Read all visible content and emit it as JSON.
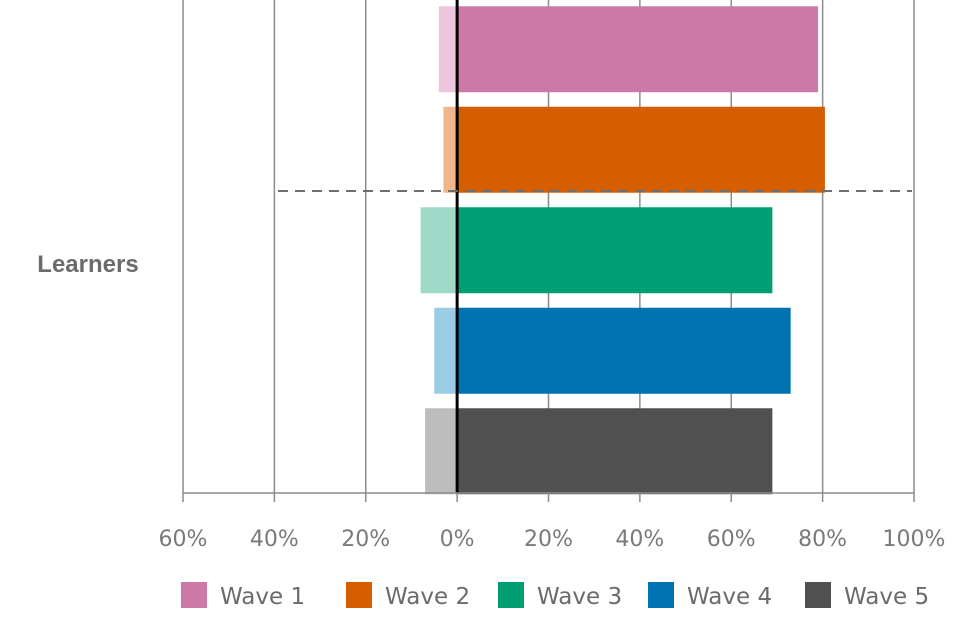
{
  "chart_data": {
    "type": "bar",
    "orientation": "horizontal",
    "stacked": "diverging",
    "category": "Learners",
    "x_ticks": [
      "60%",
      "40%",
      "20%",
      "0%",
      "20%",
      "40%",
      "60%",
      "80%",
      "100%"
    ],
    "xlim": [
      -60,
      100
    ],
    "grid": "vertical",
    "legend_position": "bottom",
    "series": [
      {
        "name": "Wave 1",
        "negative": -4,
        "positive": 79,
        "color": "#cc79a7",
        "light_color": "#ebc6dc"
      },
      {
        "name": "Wave 2",
        "negative": -3,
        "positive": 80.5,
        "color": "#d55e00",
        "light_color": "#f0b58a"
      },
      {
        "name": "Wave 3",
        "negative": -8,
        "positive": 69,
        "color": "#009e73",
        "light_color": "#9fd9c7"
      },
      {
        "name": "Wave 4",
        "negative": -5,
        "positive": 73,
        "color": "#0072b2",
        "light_color": "#9ccbe6"
      },
      {
        "name": "Wave 5",
        "negative": -7,
        "positive": 69,
        "color": "#505050",
        "light_color": "#bdbdbd"
      }
    ]
  }
}
